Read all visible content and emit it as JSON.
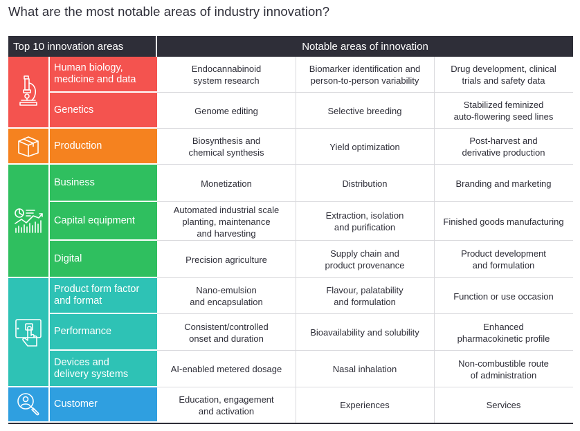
{
  "title": "What are the most notable areas of industry innovation?",
  "header": {
    "left": "Top 10 innovation areas",
    "right": "Notable areas of innovation"
  },
  "groups": [
    {
      "icon": "microscope-icon",
      "color": "#f4534f"
    },
    {
      "icon": "box-icon",
      "color": "#f5821f"
    },
    {
      "icon": "charts-icon",
      "color": "#2fbf5f"
    },
    {
      "icon": "tablet-hand-icon",
      "color": "#2ec2b5"
    },
    {
      "icon": "magnifier-person-icon",
      "color": "#2f9fe0"
    }
  ],
  "rows": [
    {
      "area": "Human biology, medicine and data",
      "area_lines": [
        "Human biology,",
        "medicine and data"
      ],
      "cells": [
        [
          "Endocannabinoid",
          "system research"
        ],
        [
          "Biomarker identification and",
          "person-to-person variability"
        ],
        [
          "Drug development, clinical",
          "trials and safety data"
        ]
      ]
    },
    {
      "area": "Genetics",
      "area_lines": [
        "Genetics"
      ],
      "cells": [
        [
          "Genome editing"
        ],
        [
          "Selective breeding"
        ],
        [
          "Stabilized feminized",
          "auto-flowering seed lines"
        ]
      ]
    },
    {
      "area": "Production",
      "area_lines": [
        "Production"
      ],
      "cells": [
        [
          "Biosynthesis and",
          "chemical synthesis"
        ],
        [
          "Yield optimization"
        ],
        [
          "Post-harvest and",
          "derivative production"
        ]
      ]
    },
    {
      "area": "Business",
      "area_lines": [
        "Business"
      ],
      "cells": [
        [
          "Monetization"
        ],
        [
          "Distribution"
        ],
        [
          "Branding and marketing"
        ]
      ]
    },
    {
      "area": "Capital equipment",
      "area_lines": [
        "Capital equipment"
      ],
      "cells": [
        [
          "Automated industrial scale",
          "planting, maintenance",
          "and harvesting"
        ],
        [
          "Extraction, isolation",
          "and purification"
        ],
        [
          "Finished goods manufacturing"
        ]
      ]
    },
    {
      "area": "Digital",
      "area_lines": [
        "Digital"
      ],
      "cells": [
        [
          "Precision agriculture"
        ],
        [
          "Supply chain and",
          "product provenance"
        ],
        [
          "Product development",
          "and formulation"
        ]
      ]
    },
    {
      "area": "Product form factor and format",
      "area_lines": [
        "Product form factor",
        "and format"
      ],
      "cells": [
        [
          "Nano-emulsion",
          "and encapsulation"
        ],
        [
          "Flavour, palatability",
          "and formulation"
        ],
        [
          "Function or use occasion"
        ]
      ]
    },
    {
      "area": "Performance",
      "area_lines": [
        "Performance"
      ],
      "cells": [
        [
          "Consistent/controlled",
          "onset and duration"
        ],
        [
          "Bioavailability and solubility"
        ],
        [
          "Enhanced",
          "pharmacokinetic profile"
        ]
      ]
    },
    {
      "area": "Devices and delivery systems",
      "area_lines": [
        "Devices and",
        "delivery systems"
      ],
      "cells": [
        [
          "AI-enabled metered dosage"
        ],
        [
          "Nasal inhalation"
        ],
        [
          "Non-combustible route",
          "of administration"
        ]
      ]
    },
    {
      "area": "Customer",
      "area_lines": [
        "Customer"
      ],
      "cells": [
        [
          "Education, engagement",
          "and activation"
        ],
        [
          "Experiences"
        ],
        [
          "Services"
        ]
      ]
    }
  ]
}
